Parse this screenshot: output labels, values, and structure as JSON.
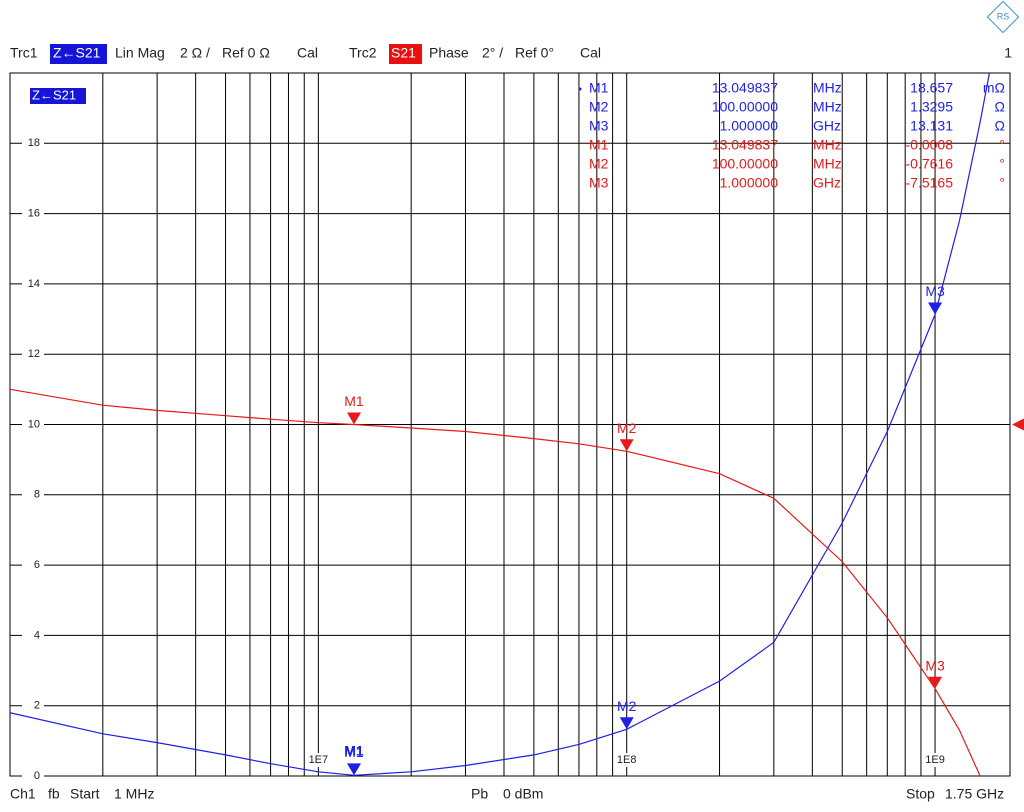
{
  "header": {
    "trc1": "Trc1",
    "trc1_meas": "Z←S21",
    "trc1_format": "Lin Mag",
    "trc1_scale": "2 Ω /",
    "trc1_ref": "Ref 0 Ω",
    "trc1_cal": "Cal",
    "trc2": "Trc2",
    "trc2_meas": "S21",
    "trc2_format": "Phase",
    "trc2_scale": "2° /",
    "trc2_ref": "Ref 0°",
    "trc2_cal": "Cal",
    "window": "1"
  },
  "footer": {
    "channel": "Ch1",
    "fb": "fb",
    "start": "Start",
    "start_value": "1 MHz",
    "pb": "Pb",
    "power": "0 dBm",
    "stop": "Stop",
    "stop_value": "1.75 GHz"
  },
  "marker_table": {
    "rows": [
      [
        "M1",
        "13.049837",
        "MHz",
        "18.657",
        "mΩ"
      ],
      [
        "M2",
        "100.00000",
        "MHz",
        "1.3295",
        "Ω"
      ],
      [
        "M3",
        "1.000000",
        "GHz",
        "13.131",
        "Ω"
      ],
      [
        "M1",
        "13.049837",
        "MHz",
        "-0.0008",
        "°"
      ],
      [
        "M2",
        "100.00000",
        "MHz",
        "-0.7616",
        "°"
      ],
      [
        "M3",
        "1.000000",
        "GHz",
        "-7.5165",
        "°"
      ]
    ]
  },
  "active_marker": "M1",
  "chart_data": {
    "type": "line",
    "trace_label": "Z←S21",
    "log_x": true,
    "grid": true,
    "x": [
      1000000,
      2000000,
      3000000,
      5000000,
      7000000,
      10000000,
      13049837,
      20000000,
      30000000,
      50000000,
      70000000,
      100000000,
      200000000,
      300000000,
      500000000,
      700000000,
      1000000000,
      1200000000,
      1400000000,
      1500000000
    ],
    "xlim": [
      1000000,
      1750000000
    ],
    "xticks": [
      {
        "value": 10000000,
        "label": "1E7"
      },
      {
        "value": 100000000,
        "label": "1E8"
      },
      {
        "value": 1000000000,
        "label": "1E9"
      }
    ],
    "x_minor_ticks": [
      2000000,
      3000000,
      4000000,
      5000000,
      6000000,
      7000000,
      8000000,
      9000000,
      20000000,
      30000000,
      40000000,
      50000000,
      60000000,
      70000000,
      80000000,
      90000000,
      200000000,
      300000000,
      400000000,
      500000000,
      600000000,
      700000000,
      800000000,
      900000000
    ],
    "ylim": [
      0,
      20
    ],
    "yticks": [
      0,
      2,
      4,
      6,
      8,
      10,
      12,
      14,
      16,
      18
    ],
    "y2lim": [
      -10,
      10
    ],
    "series": [
      {
        "name": "Trc1",
        "color": "#1f1fe6",
        "values": [
          1.8,
          1.2,
          0.95,
          0.6,
          0.35,
          0.12,
          0.018657,
          0.12,
          0.3,
          0.6,
          0.9,
          1.3295,
          2.7,
          3.8,
          7.2,
          9.8,
          13.131,
          15.8,
          18.6,
          20
        ]
      },
      {
        "name": "Trc2",
        "color": "#e61a1a",
        "axis": "y2",
        "values": [
          1.0,
          0.55,
          0.4,
          0.25,
          0.15,
          0.05,
          -0.0008,
          -0.1,
          -0.2,
          -0.4,
          -0.55,
          -0.7616,
          -1.4,
          -2.1,
          -3.9,
          -5.5,
          -7.5165,
          -8.7,
          -10,
          null
        ]
      }
    ],
    "markers": [
      {
        "label": "M1",
        "x": 13049837
      },
      {
        "label": "M2",
        "x": 100000000
      },
      {
        "label": "M3",
        "x": 1000000000
      }
    ]
  }
}
